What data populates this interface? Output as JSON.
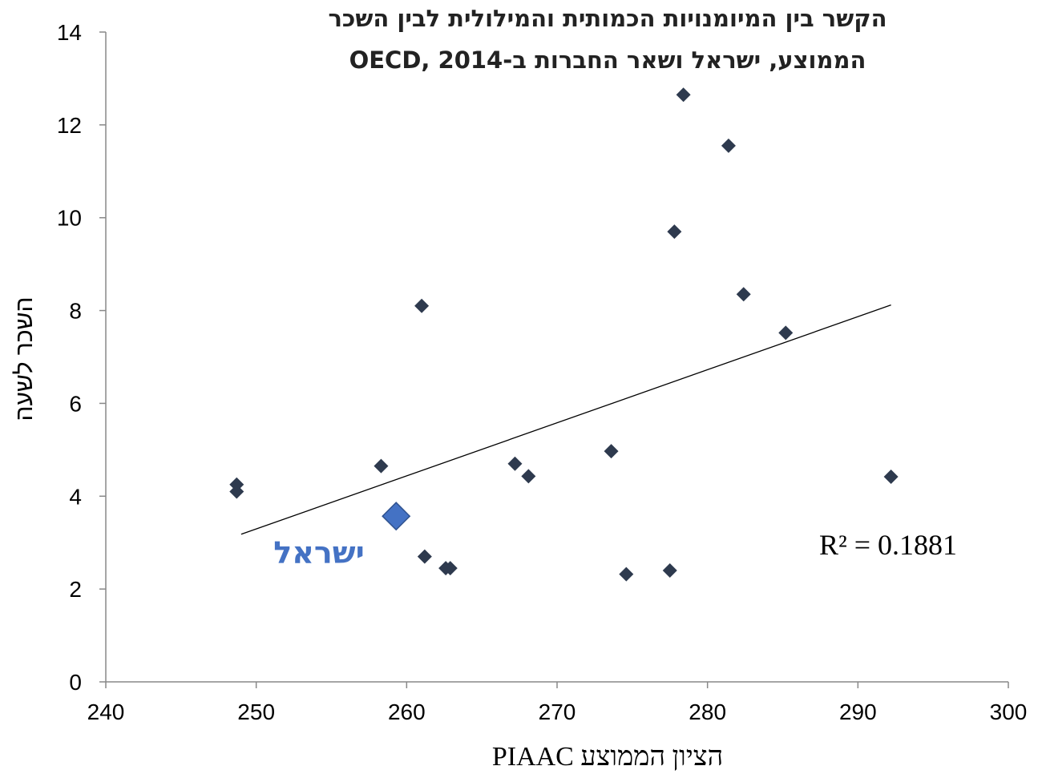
{
  "chart_data": {
    "type": "scatter",
    "title_lines": [
      "הקשר בין המיומנויות הכמותית והמילולית לבין השכר",
      "הממוצע, ישראל ושאר החברות ב-OECD, 2014"
    ],
    "xlabel": "הציון הממוצע PIAAC",
    "ylabel": "השכר לשעה",
    "xlim": [
      240,
      300
    ],
    "ylim": [
      0,
      14
    ],
    "x_ticks": [
      "240",
      "250",
      "260",
      "270",
      "280",
      "290",
      "300"
    ],
    "y_ticks": [
      "0",
      "2",
      "4",
      "6",
      "8",
      "10",
      "12",
      "14"
    ],
    "grid": false,
    "points": [
      {
        "x": 248.7,
        "y": 4.25
      },
      {
        "x": 248.7,
        "y": 4.1
      },
      {
        "x": 258.3,
        "y": 4.65
      },
      {
        "x": 261.0,
        "y": 8.1
      },
      {
        "x": 261.2,
        "y": 2.7
      },
      {
        "x": 262.6,
        "y": 2.45
      },
      {
        "x": 262.9,
        "y": 2.45
      },
      {
        "x": 267.2,
        "y": 4.7
      },
      {
        "x": 268.1,
        "y": 4.43
      },
      {
        "x": 273.6,
        "y": 4.97
      },
      {
        "x": 274.6,
        "y": 2.32
      },
      {
        "x": 277.5,
        "y": 2.4
      },
      {
        "x": 277.8,
        "y": 9.7
      },
      {
        "x": 278.4,
        "y": 12.65
      },
      {
        "x": 281.4,
        "y": 11.55
      },
      {
        "x": 282.4,
        "y": 8.35
      },
      {
        "x": 285.2,
        "y": 7.52
      },
      {
        "x": 292.2,
        "y": 4.42
      }
    ],
    "highlight": {
      "label": "ישראל",
      "x": 259.3,
      "y": 3.57,
      "color": "#4472C4"
    },
    "trendline": {
      "x": [
        249.0,
        292.2
      ],
      "y": [
        3.18,
        8.12
      ],
      "r2_text": "R² = 0.1881"
    },
    "marker_color": "#2E3A4E"
  }
}
